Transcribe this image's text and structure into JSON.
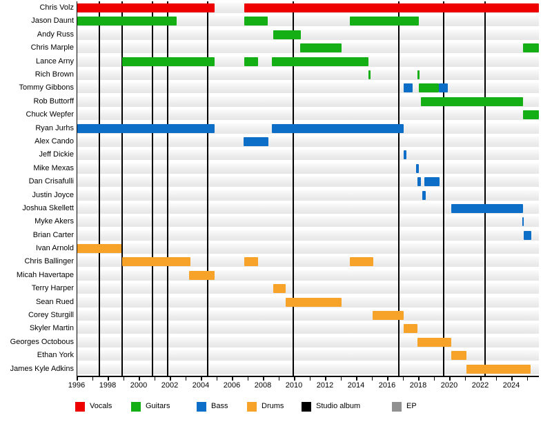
{
  "chart_data": {
    "type": "timeline",
    "x_axis": {
      "start": 1996,
      "end": 2025.75,
      "label_years": [
        1996,
        1998,
        2000,
        2002,
        2004,
        2006,
        2008,
        2010,
        2012,
        2014,
        2016,
        2018,
        2020,
        2022,
        2024
      ],
      "minor_tick_every": 1
    },
    "colors": {
      "vocals": "#ee0000",
      "guitars": "#14af14",
      "bass": "#0d6ec8",
      "drums": "#f7a229",
      "studio_album": "#000000",
      "ep": "#909090"
    },
    "legend": [
      {
        "label": "Vocals",
        "role": "vocals",
        "color": "#ee0000"
      },
      {
        "label": "Guitars",
        "role": "guitars",
        "color": "#14af14"
      },
      {
        "label": "Bass",
        "role": "bass",
        "color": "#0d6ec8"
      },
      {
        "label": "Drums",
        "role": "drums",
        "color": "#f7a229"
      },
      {
        "label": "Studio album",
        "role": "studio_album",
        "color": "#000000"
      },
      {
        "label": "EP",
        "role": "ep",
        "color": "#909090"
      }
    ],
    "album_lines": {
      "studio": [
        1997.4,
        1998.9,
        2000.85,
        2001.8,
        2004.4,
        2009.9,
        2016.7,
        2019.6,
        2022.25
      ],
      "ep": []
    },
    "members": [
      {
        "name": "Chris Volz",
        "segments": [
          {
            "role": "vocals",
            "start": 1996,
            "end": 2004.85
          },
          {
            "role": "vocals",
            "start": 2006.75,
            "end": 2025.75
          }
        ]
      },
      {
        "name": "Jason Daunt",
        "segments": [
          {
            "role": "guitars",
            "start": 1996,
            "end": 2002.4
          },
          {
            "role": "guitars",
            "start": 2006.75,
            "end": 2008.25
          },
          {
            "role": "guitars",
            "start": 2013.55,
            "end": 2018.0
          }
        ]
      },
      {
        "name": "Andy Russ",
        "segments": [
          {
            "role": "guitars",
            "start": 2008.6,
            "end": 2010.4
          }
        ]
      },
      {
        "name": "Chris Marple",
        "segments": [
          {
            "role": "guitars",
            "start": 2010.35,
            "end": 2013.0
          },
          {
            "role": "guitars",
            "start": 2024.7,
            "end": 2025.75
          }
        ]
      },
      {
        "name": "Lance Arny",
        "segments": [
          {
            "role": "guitars",
            "start": 1998.9,
            "end": 2004.85
          },
          {
            "role": "guitars",
            "start": 2006.75,
            "end": 2007.65
          },
          {
            "role": "guitars",
            "start": 2008.55,
            "end": 2014.75
          }
        ]
      },
      {
        "name": "Rich Brown",
        "segments": [
          {
            "role": "guitars",
            "start": 2014.75,
            "end": 2014.9
          },
          {
            "role": "guitars",
            "start": 2017.9,
            "end": 2018.05
          }
        ]
      },
      {
        "name": "Tommy Gibbons",
        "segments": [
          {
            "role": "bass",
            "start": 2017.0,
            "end": 2017.6
          },
          {
            "role": "guitars",
            "start": 2018.0,
            "end": 2019.3
          },
          {
            "role": "bass",
            "start": 2019.3,
            "end": 2019.85
          }
        ]
      },
      {
        "name": "Rob Buttorff",
        "segments": [
          {
            "role": "guitars",
            "start": 2018.15,
            "end": 2024.7
          }
        ]
      },
      {
        "name": "Chuck Wepfer",
        "segments": [
          {
            "role": "guitars",
            "start": 2024.7,
            "end": 2025.75
          }
        ]
      },
      {
        "name": "Ryan Jurhs",
        "segments": [
          {
            "role": "bass",
            "start": 1996,
            "end": 2004.85
          },
          {
            "role": "bass",
            "start": 2008.55,
            "end": 2017.0
          }
        ]
      },
      {
        "name": "Alex Cando",
        "segments": [
          {
            "role": "bass",
            "start": 2006.7,
            "end": 2008.3
          }
        ]
      },
      {
        "name": "Jeff Dickie",
        "segments": [
          {
            "role": "bass",
            "start": 2017.0,
            "end": 2017.2
          }
        ]
      },
      {
        "name": "Mike Mexas",
        "segments": [
          {
            "role": "bass",
            "start": 2017.8,
            "end": 2018.0
          }
        ]
      },
      {
        "name": "Dan Crisafulli",
        "segments": [
          {
            "role": "bass",
            "start": 2017.9,
            "end": 2018.15
          },
          {
            "role": "bass",
            "start": 2018.35,
            "end": 2019.35
          }
        ]
      },
      {
        "name": "Justin Joyce",
        "segments": [
          {
            "role": "bass",
            "start": 2018.2,
            "end": 2018.45
          }
        ]
      },
      {
        "name": "Joshua Skellett",
        "segments": [
          {
            "role": "bass",
            "start": 2020.1,
            "end": 2024.7
          }
        ]
      },
      {
        "name": "Myke Akers",
        "segments": [
          {
            "role": "bass",
            "start": 2024.65,
            "end": 2024.75
          }
        ]
      },
      {
        "name": "Brian Carter",
        "segments": [
          {
            "role": "bass",
            "start": 2024.75,
            "end": 2025.25
          }
        ]
      },
      {
        "name": "Ivan Arnold",
        "segments": [
          {
            "role": "drums",
            "start": 1996,
            "end": 1998.85
          }
        ]
      },
      {
        "name": "Chris Ballinger",
        "segments": [
          {
            "role": "drums",
            "start": 1998.9,
            "end": 2003.3
          },
          {
            "role": "drums",
            "start": 2006.75,
            "end": 2007.65
          },
          {
            "role": "drums",
            "start": 2013.55,
            "end": 2015.05
          }
        ]
      },
      {
        "name": "Micah Havertape",
        "segments": [
          {
            "role": "drums",
            "start": 2003.2,
            "end": 2004.85
          }
        ]
      },
      {
        "name": "Terry Harper",
        "segments": [
          {
            "role": "drums",
            "start": 2008.6,
            "end": 2009.4
          }
        ]
      },
      {
        "name": "Sean Rued",
        "segments": [
          {
            "role": "drums",
            "start": 2009.4,
            "end": 2013.0
          }
        ]
      },
      {
        "name": "Corey Sturgill",
        "segments": [
          {
            "role": "drums",
            "start": 2015.0,
            "end": 2017.0
          }
        ]
      },
      {
        "name": "Skyler Martin",
        "segments": [
          {
            "role": "drums",
            "start": 2017.0,
            "end": 2017.9
          }
        ]
      },
      {
        "name": "Georges Octobous",
        "segments": [
          {
            "role": "drums",
            "start": 2017.9,
            "end": 2020.1
          }
        ]
      },
      {
        "name": "Ethan York",
        "segments": [
          {
            "role": "drums",
            "start": 2020.1,
            "end": 2021.05
          }
        ]
      },
      {
        "name": "James Kyle Adkins",
        "segments": [
          {
            "role": "drums",
            "start": 2021.05,
            "end": 2025.2
          }
        ]
      }
    ]
  }
}
